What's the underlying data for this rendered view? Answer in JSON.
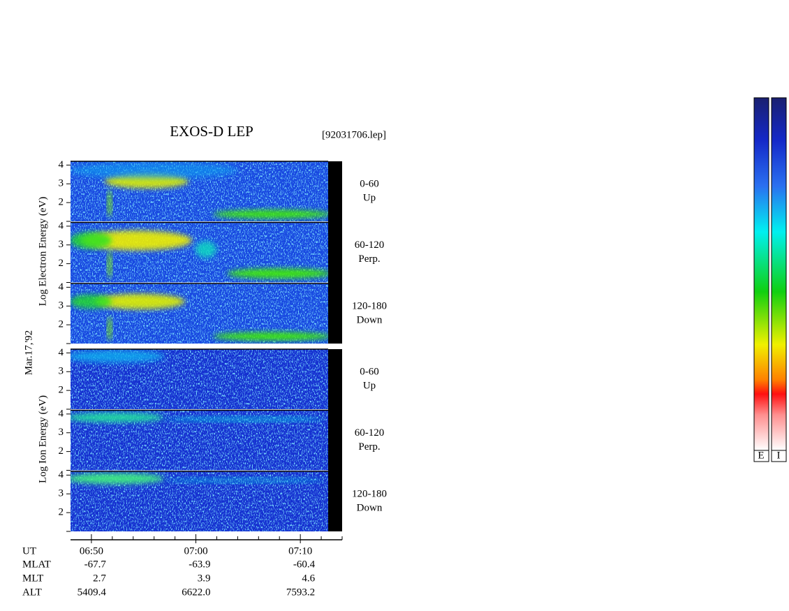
{
  "chart_data": {
    "type": "spectrogram",
    "title": "EXOS-D LEP",
    "file": "[92031706.lep]",
    "date": "Mar.17,'92",
    "groups": [
      {
        "ylabel": "Log Electron Energy (eV)",
        "panels": [
          {
            "range": "0-60",
            "direction": "Up"
          },
          {
            "range": "60-120",
            "direction": "Perp."
          },
          {
            "range": "120-180",
            "direction": "Down"
          }
        ]
      },
      {
        "ylabel": "Log Ion Energy (eV)",
        "panels": [
          {
            "range": "0-60",
            "direction": "Up"
          },
          {
            "range": "60-120",
            "direction": "Perp."
          },
          {
            "range": "120-180",
            "direction": "Down"
          }
        ]
      }
    ],
    "ylim": [
      1,
      4.2
    ],
    "yticks": [
      2,
      3,
      4
    ],
    "xlim": [
      408,
      434
    ],
    "xticks": [
      {
        "value": 410,
        "label": "06:50"
      },
      {
        "value": 420,
        "label": "07:00"
      },
      {
        "value": 430,
        "label": "07:10"
      }
    ],
    "x_label": "UT",
    "rows": [
      {
        "label": "MLAT",
        "values": [
          "-67.7",
          "-63.9",
          "-60.4"
        ]
      },
      {
        "label": "MLT",
        "values": [
          "2.7",
          "3.9",
          "4.6"
        ]
      },
      {
        "label": "ALT",
        "values": [
          "5409.4",
          "6622.0",
          "7593.2"
        ]
      }
    ],
    "colorbars": [
      "E",
      "I"
    ]
  }
}
